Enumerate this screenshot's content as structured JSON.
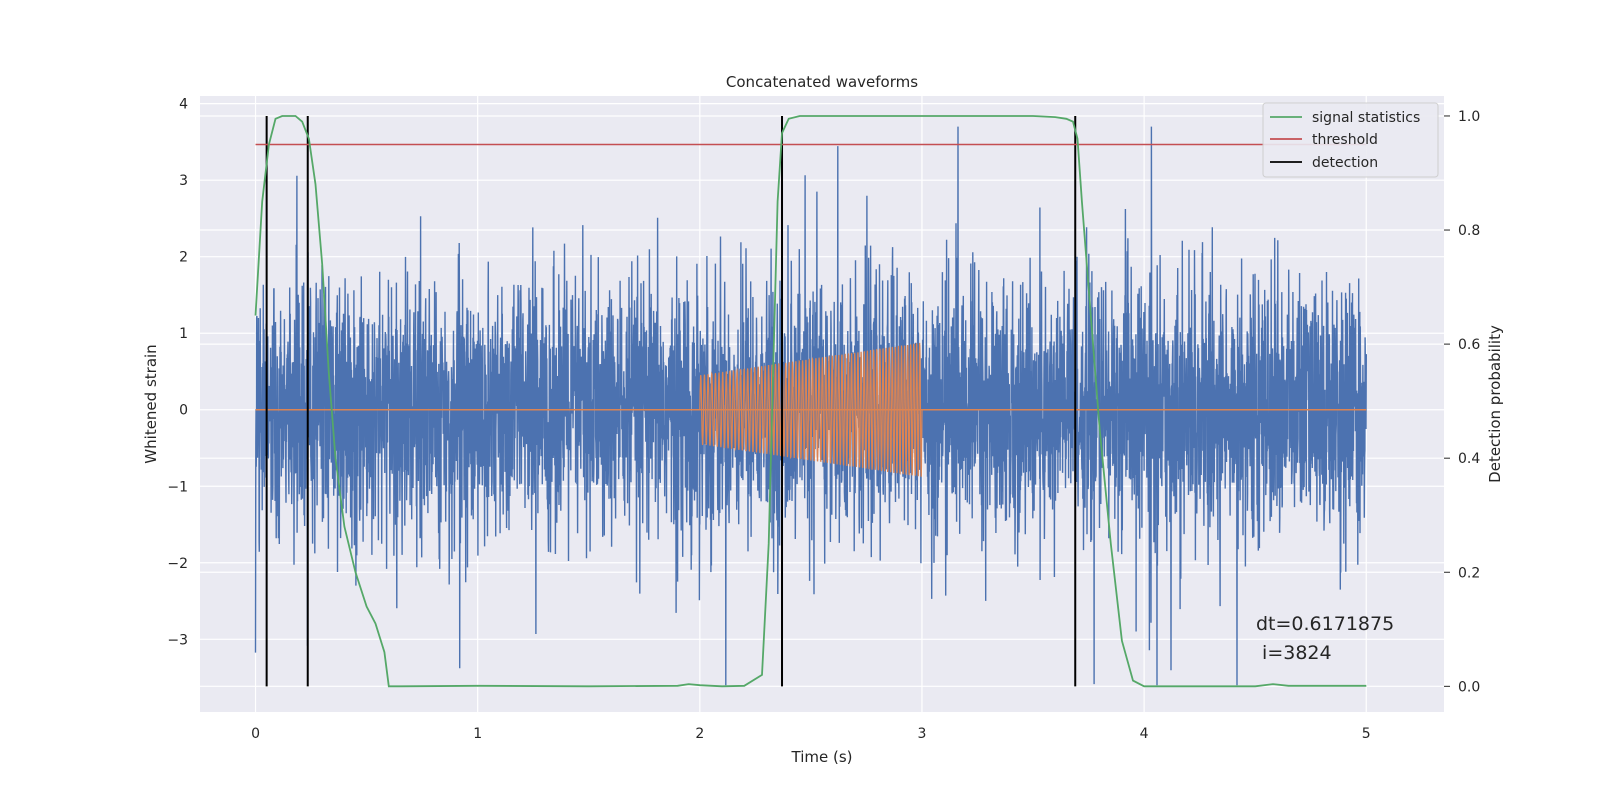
{
  "chart_data": {
    "type": "line",
    "title": "Concatenated waveforms",
    "xlabel": "Time (s)",
    "ylabel_left": "Whitened strain",
    "ylabel_right": "Detection probability",
    "xlim": [
      -0.25,
      5.35
    ],
    "ylim_left": [
      -3.95,
      4.1
    ],
    "ylim_right": [
      -0.045,
      1.035
    ],
    "x_ticks": [
      0,
      1,
      2,
      3,
      4,
      5
    ],
    "x_tick_labels": [
      "0",
      "1",
      "2",
      "3",
      "4",
      "5"
    ],
    "y_left_ticks": [
      -3,
      -2,
      -1,
      0,
      1,
      2,
      3,
      4
    ],
    "y_left_tick_labels": [
      "−3",
      "−2",
      "−1",
      "0",
      "1",
      "2",
      "3",
      "4"
    ],
    "y_right_ticks": [
      0.0,
      0.2,
      0.4,
      0.6,
      0.8,
      1.0
    ],
    "y_right_tick_labels": [
      "0.0",
      "0.2",
      "0.4",
      "0.6",
      "0.8",
      "1.0"
    ],
    "grid": true,
    "legend_position": "top-right",
    "legend": [
      {
        "label": "signal statistics",
        "color": "#55a868"
      },
      {
        "label": "threshold",
        "color": "#c44e52"
      },
      {
        "label": "detection",
        "color": "#000000"
      }
    ],
    "series": [
      {
        "kind": "noise",
        "axis": "left",
        "color": "#4c72b0",
        "x_range": [
          0,
          5
        ],
        "envelope_min": -3.6,
        "envelope_max": 3.7,
        "typical_band": [
          -1.7,
          2.4
        ]
      },
      {
        "kind": "injected chirp",
        "axis": "left",
        "color": "#dd8452",
        "baseline": 0,
        "x_range": [
          0,
          5
        ],
        "chirp_start": 2.0,
        "chirp_end": 3.0,
        "amplitude_start": 0.45,
        "amplitude_end": 0.88
      },
      {
        "name": "signal statistics",
        "axis": "right",
        "color": "#55a868",
        "x": [
          0.0,
          0.03,
          0.06,
          0.09,
          0.12,
          0.15,
          0.18,
          0.21,
          0.24,
          0.27,
          0.3,
          0.33,
          0.36,
          0.4,
          0.45,
          0.5,
          0.54,
          0.58,
          0.6,
          0.65,
          1.0,
          1.5,
          1.9,
          1.95,
          2.0,
          2.1,
          2.2,
          2.28,
          2.31,
          2.33,
          2.35,
          2.37,
          2.4,
          2.45,
          2.5,
          3.0,
          3.5,
          3.6,
          3.65,
          3.68,
          3.7,
          3.72,
          3.76,
          3.8,
          3.85,
          3.9,
          3.95,
          4.0,
          4.5,
          4.58,
          4.65,
          5.0
        ],
        "y": [
          0.65,
          0.85,
          0.95,
          0.995,
          1.0,
          1.0,
          1.0,
          0.99,
          0.96,
          0.88,
          0.74,
          0.55,
          0.4,
          0.28,
          0.2,
          0.14,
          0.11,
          0.06,
          0.0,
          0.0,
          0.001,
          0.0,
          0.001,
          0.004,
          0.002,
          0.0,
          0.001,
          0.02,
          0.25,
          0.55,
          0.85,
          0.97,
          0.995,
          1.0,
          1.0,
          1.0,
          1.0,
          0.998,
          0.995,
          0.99,
          0.96,
          0.85,
          0.65,
          0.45,
          0.25,
          0.08,
          0.01,
          0.0,
          0.0,
          0.004,
          0.001,
          0.001
        ]
      },
      {
        "name": "threshold",
        "axis": "right",
        "color": "#c44e52",
        "x": [
          0,
          5
        ],
        "y": [
          0.95,
          0.95
        ]
      }
    ],
    "detections": [
      0.05,
      0.235,
      2.37,
      3.69
    ],
    "annotation": [
      "dt=0.6171875",
      " i=3824"
    ]
  }
}
